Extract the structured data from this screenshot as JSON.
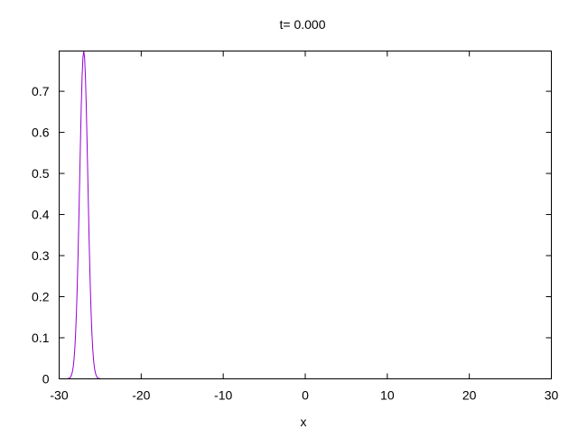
{
  "chart_data": {
    "type": "line",
    "title": "t= 0.000",
    "xlabel": "x",
    "ylabel": "",
    "xlim": [
      -30,
      30
    ],
    "ylim": [
      0,
      0.798
    ],
    "xticks": [
      -30,
      -20,
      -10,
      0,
      10,
      20,
      30
    ],
    "yticks": [
      0,
      0.1,
      0.2,
      0.3,
      0.4,
      0.5,
      0.6,
      0.7
    ],
    "ytick_labels": [
      "0",
      "0.1",
      "0.2",
      "0.3",
      "0.4",
      "0.5",
      "0.6",
      "0.7"
    ],
    "grid": false,
    "legend": "none",
    "series": [
      {
        "color": "#9400d3",
        "x": [
          -30,
          -29,
          -28.9,
          -28.8,
          -28.7,
          -28.6,
          -28.5,
          -28.4,
          -28.3,
          -28.2,
          -28.1,
          -28,
          -27.9,
          -27.8,
          -27.7,
          -27.6,
          -27.5,
          -27.4,
          -27.3,
          -27.2,
          -27.1,
          -27,
          -26.9,
          -26.8,
          -26.7,
          -26.6,
          -26.5,
          -26.4,
          -26.3,
          -26.2,
          -26.1,
          -26,
          -25.9,
          -25.8,
          -25.7,
          -25.6,
          -25.5,
          -25.4,
          -25.3,
          -25.2,
          -25.1,
          -25,
          30
        ],
        "y": [
          0,
          0,
          0.001,
          0.001,
          0.002,
          0.005,
          0.009,
          0.016,
          0.027,
          0.045,
          0.071,
          0.108,
          0.158,
          0.222,
          0.299,
          0.388,
          0.484,
          0.579,
          0.667,
          0.737,
          0.782,
          0.798,
          0.782,
          0.737,
          0.667,
          0.579,
          0.484,
          0.388,
          0.299,
          0.222,
          0.158,
          0.108,
          0.071,
          0.045,
          0.027,
          0.016,
          0.009,
          0.005,
          0.002,
          0.001,
          0.001,
          0,
          0
        ]
      }
    ]
  }
}
